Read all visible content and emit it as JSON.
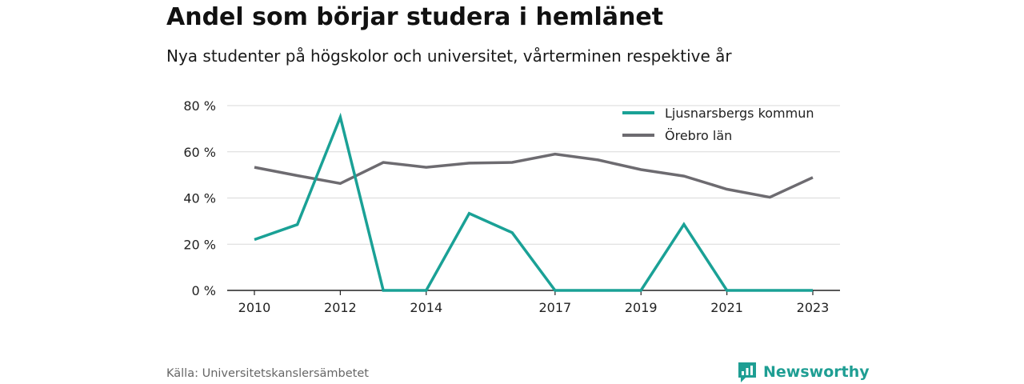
{
  "title": "Andel som börjar studera i hemlänet",
  "subtitle": "Nya studenter på högskolor och universitet, vårterminen respektive år",
  "source": "Källa: Universitetskanslersämbetet",
  "brand": {
    "name": "Newsworthy",
    "icon": "newsworthy-logo-icon",
    "color": "#1e9e93"
  },
  "chart_data": {
    "type": "line",
    "x": [
      2010,
      2011,
      2012,
      2013,
      2014,
      2015,
      2016,
      2017,
      2018,
      2019,
      2020,
      2021,
      2022,
      2023
    ],
    "x_tick_labels": [
      "2010",
      "2012",
      "2014",
      "2017",
      "2019",
      "2021",
      "2023"
    ],
    "y_tick_labels": [
      "0 %",
      "20 %",
      "40 %",
      "60 %",
      "80 %"
    ],
    "y_ticks": [
      0,
      20,
      40,
      60,
      80
    ],
    "ylim": [
      0,
      80
    ],
    "xlim": [
      2010,
      2023
    ],
    "grid": true,
    "legend_position": "top-right",
    "series": [
      {
        "name": "Ljusnarsbergs kommun",
        "color": "#1aa196",
        "values": [
          22,
          28.5,
          75,
          0,
          0,
          33.3,
          25,
          0,
          0,
          0,
          28.6,
          0,
          0,
          0
        ]
      },
      {
        "name": "Örebro län",
        "color": "#6d6b70",
        "values": [
          53.3,
          49.7,
          46.3,
          55.4,
          53.3,
          55.1,
          55.4,
          59,
          56.5,
          52.3,
          49.5,
          43.8,
          40.3,
          48.9
        ]
      }
    ]
  }
}
